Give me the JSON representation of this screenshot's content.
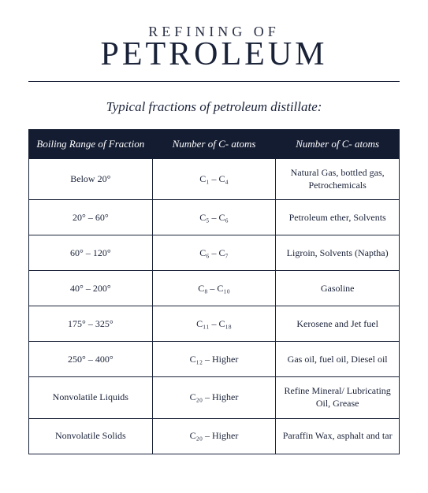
{
  "title_small": "REFINING OF",
  "title_big": "PETROLEUM",
  "subtitle": "Typical fractions of petroleum distillate:",
  "table": {
    "type": "table",
    "header_bg": "#141c32",
    "header_fg": "#ffffff",
    "border_color": "#1a2238",
    "page_bg": "#ffffff",
    "text_color": "#1a2238",
    "title_small_fontsize": 18,
    "title_big_fontsize": 42,
    "subtitle_fontsize": 17,
    "header_fontsize": 13,
    "cell_fontsize": 12,
    "columns": [
      "Boiling Range of Fraction",
      "Number of C- atoms",
      "Number of C- atoms"
    ],
    "rows": [
      {
        "boil": "Below 20°",
        "carbon": "C₁ – C₄",
        "uses": "Natural Gas, bottled gas, Petrochemicals"
      },
      {
        "boil": "20° – 60°",
        "carbon": "C₅ – C₆",
        "uses": "Petroleum ether, Solvents"
      },
      {
        "boil": "60° – 120°",
        "carbon": "C₆ – C₇",
        "uses": "Ligroin, Solvents (Naptha)"
      },
      {
        "boil": "40° – 200°",
        "carbon": "C₈ – C₁₀",
        "uses": "Gasoline"
      },
      {
        "boil": "175° – 325°",
        "carbon": "C₁₁ – C₁₈",
        "uses": "Kerosene and Jet fuel"
      },
      {
        "boil": "250° – 400°",
        "carbon": "C₁₂ – Higher",
        "uses": "Gas oil, fuel oil, Diesel oil"
      },
      {
        "boil": "Nonvolatile Liquids",
        "carbon": "C₂₀ – Higher",
        "uses": "Refine Mineral/ Lubricating Oil, Grease"
      },
      {
        "boil": "Nonvolatile Solids",
        "carbon": "C₂₀ – Higher",
        "uses": "Paraffin Wax, asphalt and tar"
      }
    ]
  }
}
